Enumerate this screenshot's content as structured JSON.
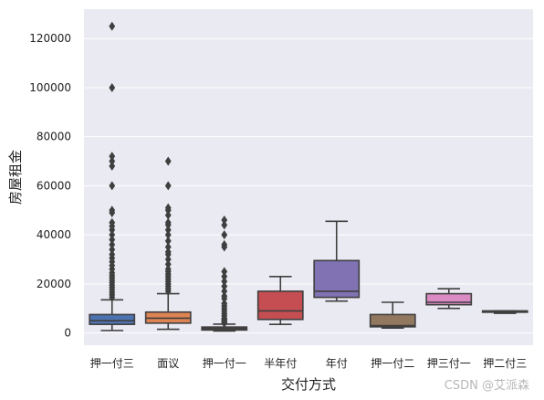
{
  "chart_data": {
    "type": "box",
    "xlabel": "交付方式",
    "ylabel": "房屋租金",
    "ylim": [
      -5000,
      132000
    ],
    "yticks": [
      0,
      20000,
      40000,
      60000,
      80000,
      100000,
      120000
    ],
    "grid": true,
    "categories": [
      "押一付三",
      "面议",
      "押一付一",
      "半年付",
      "年付",
      "押一付二",
      "押三付一",
      "押二付三"
    ],
    "boxes": [
      {
        "category": "押一付三",
        "color": "#4c72b0",
        "whisker_low": 1000,
        "q1": 3500,
        "median": 5000,
        "q3": 7500,
        "whisker_high": 13500,
        "outliers": [
          14500,
          15500,
          16500,
          17500,
          18500,
          19500,
          20500,
          21500,
          22500,
          23500,
          24500,
          26000,
          27500,
          29000,
          30500,
          32000,
          34000,
          36000,
          38000,
          40000,
          42000,
          43500,
          45000,
          49000,
          50000,
          60000,
          68000,
          70000,
          72000,
          100000,
          125000
        ]
      },
      {
        "category": "面议",
        "color": "#dd8452",
        "whisker_low": 1500,
        "q1": 4000,
        "median": 6000,
        "q3": 8500,
        "whisker_high": 16000,
        "outliers": [
          17000,
          18000,
          19000,
          20000,
          21000,
          22000,
          23000,
          24000,
          25000,
          26000,
          28000,
          30000,
          32000,
          33000,
          35000,
          37500,
          40000,
          42000,
          44000,
          45000,
          48000,
          50000,
          51000,
          60000,
          70000
        ]
      },
      {
        "category": "押一付一",
        "color": "#c44e52",
        "whisker_low": 800,
        "q1": 1200,
        "median": 1800,
        "q3": 2400,
        "whisker_high": 3600,
        "outliers": [
          4000,
          4500,
          5000,
          5500,
          6000,
          7000,
          8000,
          9000,
          10000,
          11000,
          12000,
          14000,
          15000,
          17000,
          19000,
          21000,
          23000,
          25000,
          35000,
          36000,
          40000,
          44000,
          46000
        ]
      },
      {
        "category": "半年付",
        "color": "#c44e52",
        "whisker_low": 3500,
        "q1": 5500,
        "median": 9000,
        "q3": 17000,
        "whisker_high": 23000,
        "outliers": []
      },
      {
        "category": "年付",
        "color": "#8172b3",
        "whisker_low": 13000,
        "q1": 14500,
        "median": 17000,
        "q3": 29500,
        "whisker_high": 45500,
        "outliers": []
      },
      {
        "category": "押一付二",
        "color": "#937860",
        "whisker_low": 2000,
        "q1": 2500,
        "median": 3000,
        "q3": 7500,
        "whisker_high": 12500,
        "outliers": []
      },
      {
        "category": "押三付一",
        "color": "#da8bc3",
        "whisker_low": 10000,
        "q1": 11500,
        "median": 12500,
        "q3": 16000,
        "whisker_high": 18000,
        "outliers": []
      },
      {
        "category": "押二付三",
        "color": "#8c8c8c",
        "whisker_low": 8000,
        "q1": 8500,
        "median": 8700,
        "q3": 9000,
        "whisker_high": 9000,
        "outliers": []
      }
    ]
  },
  "watermark": "CSDN @艾派森",
  "colors": {
    "plot_bg": "#eaeaf2",
    "grid": "#ffffff",
    "line": "#3f3f3f"
  }
}
